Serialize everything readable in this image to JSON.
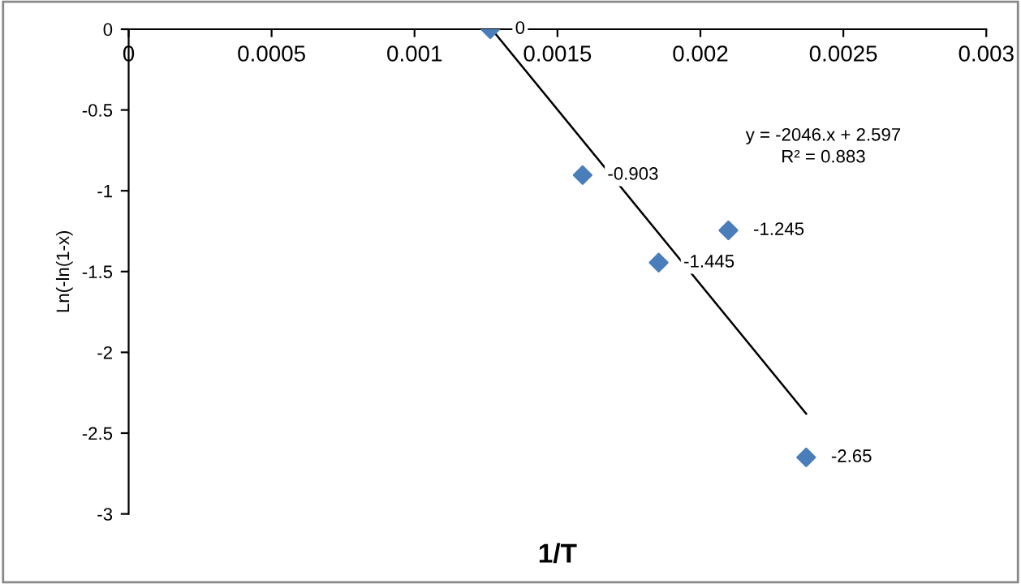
{
  "chart_data": {
    "type": "scatter",
    "xlabel": "1/T",
    "ylabel": "Ln(-ln(1-x)",
    "xlim": [
      0,
      0.003
    ],
    "ylim": [
      -3,
      0
    ],
    "xticks": [
      0,
      0.0005,
      0.001,
      0.0015,
      0.002,
      0.0025,
      0.003
    ],
    "yticks": [
      -3,
      -2.5,
      -2,
      -1.5,
      -1,
      -0.5,
      0
    ],
    "marker": "diamond",
    "grid": false,
    "legend": false,
    "annotations": [
      "y = -2046.x + 2.597",
      "R² = 0.883"
    ],
    "series": [
      {
        "color": "#4a7ebb",
        "x": [
          0.001265,
          0.001588,
          0.001854,
          0.002098,
          0.00237
        ],
        "values": [
          0,
          -0.903,
          -1.445,
          -1.245,
          -2.65
        ],
        "value_labels": [
          "0",
          "-0.903",
          "-1.445",
          "-1.245",
          "-2.65"
        ]
      },
      {
        "type": "line",
        "marker": "none",
        "color": "#000000",
        "x": [
          0.00127,
          0.00237
        ],
        "values": [
          0,
          -2.38
        ]
      }
    ]
  }
}
